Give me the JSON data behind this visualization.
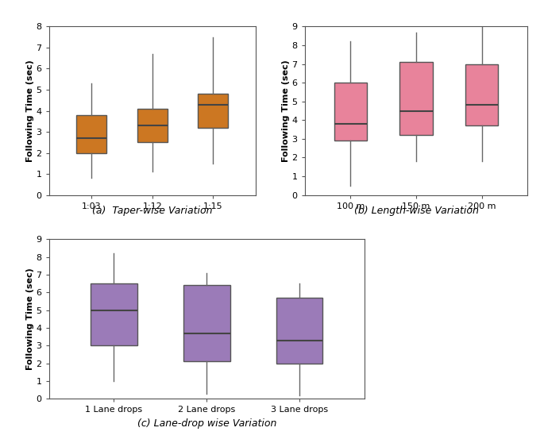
{
  "subplot_a": {
    "title": "(a)  Taper-wise Variation",
    "xlabel_labels": [
      "1:03",
      "1:12",
      "1:15"
    ],
    "ylabel": "Following Time (sec)",
    "ylim": [
      0,
      8
    ],
    "yticks": [
      0,
      1,
      2,
      3,
      4,
      5,
      6,
      7,
      8
    ],
    "boxes": [
      {
        "whislo": 0.8,
        "q1": 2.0,
        "med": 2.7,
        "q3": 3.8,
        "whishi": 5.3
      },
      {
        "whislo": 1.1,
        "q1": 2.5,
        "med": 3.3,
        "q3": 4.1,
        "whishi": 6.7
      },
      {
        "whislo": 1.5,
        "q1": 3.2,
        "med": 4.3,
        "q3": 4.8,
        "whishi": 7.5
      }
    ],
    "box_color": "#CC7722",
    "median_color": "#444444",
    "whisker_color": "#666666"
  },
  "subplot_b": {
    "title": "(b) Length-wise Variation",
    "xlabel_labels": [
      "100 m",
      "150 m",
      "200 m"
    ],
    "ylabel": "Following Time (sec)",
    "ylim": [
      0,
      9
    ],
    "yticks": [
      0,
      1,
      2,
      3,
      4,
      5,
      6,
      7,
      8,
      9
    ],
    "boxes": [
      {
        "whislo": 0.5,
        "q1": 2.9,
        "med": 3.8,
        "q3": 6.0,
        "whishi": 8.2
      },
      {
        "whislo": 1.8,
        "q1": 3.2,
        "med": 4.5,
        "q3": 7.1,
        "whishi": 8.7
      },
      {
        "whislo": 1.8,
        "q1": 3.7,
        "med": 4.8,
        "q3": 7.0,
        "whishi": 9.0
      }
    ],
    "box_color": "#E8839B",
    "median_color": "#444444",
    "whisker_color": "#666666"
  },
  "subplot_c": {
    "title": "(c) Lane-drop wise Variation",
    "xlabel_labels": [
      "1 Lane drops",
      "2 Lane drops",
      "3 Lane drops"
    ],
    "ylabel": "Following Time (sec)",
    "ylim": [
      0,
      9
    ],
    "yticks": [
      0,
      1,
      2,
      3,
      4,
      5,
      6,
      7,
      8,
      9
    ],
    "boxes": [
      {
        "whislo": 1.0,
        "q1": 3.0,
        "med": 5.0,
        "q3": 6.5,
        "whishi": 8.2
      },
      {
        "whislo": 0.3,
        "q1": 2.1,
        "med": 3.7,
        "q3": 6.4,
        "whishi": 7.1
      },
      {
        "whislo": 0.2,
        "q1": 2.0,
        "med": 3.3,
        "q3": 5.7,
        "whishi": 6.5
      }
    ],
    "box_color": "#9B7BB8",
    "median_color": "#444444",
    "whisker_color": "#666666"
  },
  "fig_width": 6.85,
  "fig_height": 5.58,
  "dpi": 100
}
